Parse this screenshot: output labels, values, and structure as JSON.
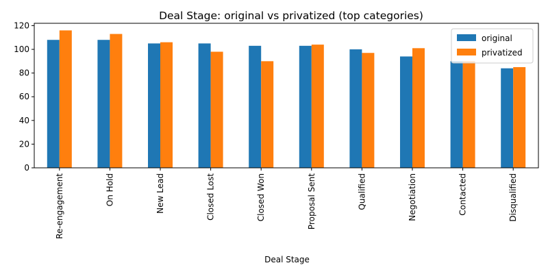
{
  "chart_data": {
    "type": "bar",
    "title": "Deal Stage: original vs privatized (top categories)",
    "xlabel": "Deal Stage",
    "ylabel": "",
    "categories": [
      "Re-engagement",
      "On Hold",
      "New Lead",
      "Closed Lost",
      "Closed Won",
      "Proposal Sent",
      "Qualified",
      "Negotiation",
      "Contacted",
      "Disqualified"
    ],
    "series": [
      {
        "name": "original",
        "color": "#1f77b4",
        "values": [
          108,
          108,
          105,
          105,
          103,
          103,
          100,
          94,
          90,
          84
        ]
      },
      {
        "name": "privatized",
        "color": "#ff7f0e",
        "values": [
          116,
          113,
          106,
          98,
          90,
          104,
          97,
          101,
          90,
          85
        ]
      }
    ],
    "ylim": [
      0,
      122
    ],
    "yticks": [
      0,
      20,
      40,
      60,
      80,
      100,
      120
    ],
    "grid": false,
    "legend_position": "top-right"
  }
}
